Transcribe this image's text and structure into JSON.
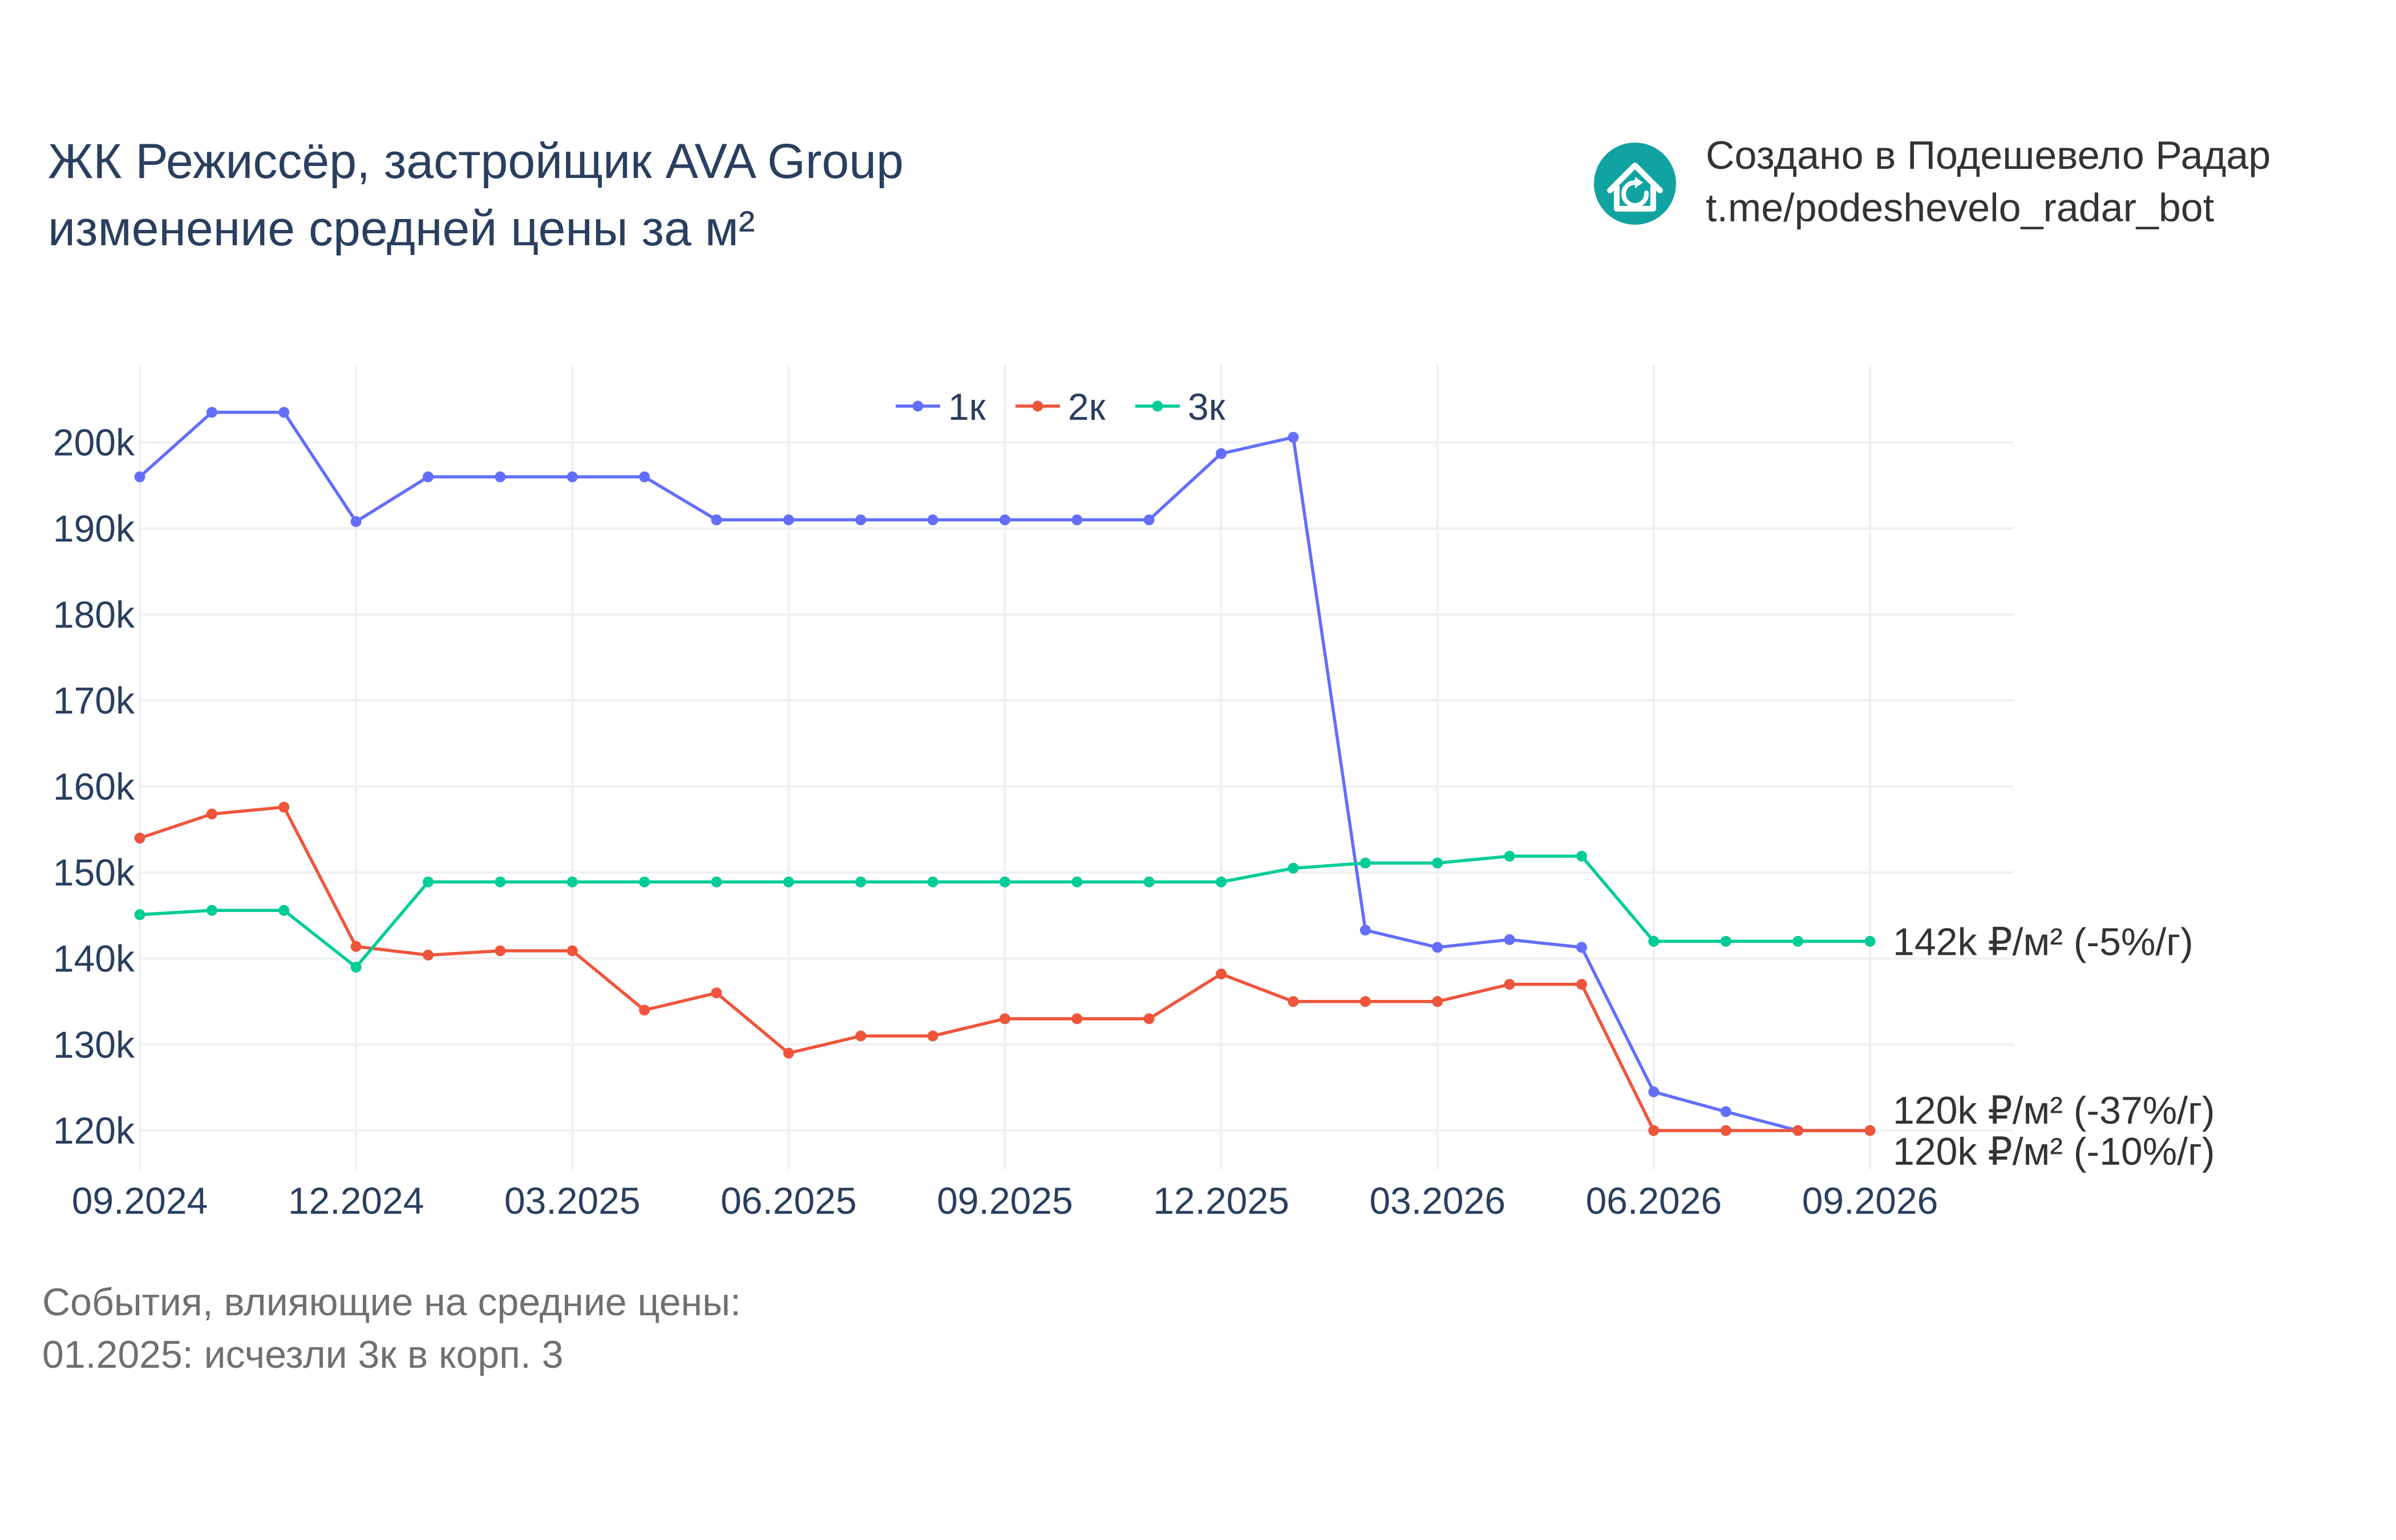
{
  "header": {
    "title_line1": "ЖК Режиссёр, застройщик AVA Group",
    "title_line2": "изменение средней цены за м²"
  },
  "credit": {
    "line1": "Создано в Подешевело Радар",
    "line2": "t.me/podeshevelo_radar_bot",
    "icon": "house-logo-icon",
    "icon_color": "#11a3a1"
  },
  "notes": {
    "line1": "События, влияющие на средние цены:",
    "line2": "01.2025: исчезли 3к в корп. 3"
  },
  "chart_data": {
    "type": "line",
    "x": [
      "09.2024",
      "10.2024",
      "11.2024",
      "12.2024",
      "01.2025",
      "02.2025",
      "03.2025",
      "04.2025",
      "05.2025",
      "06.2025",
      "07.2025",
      "08.2025",
      "09.2025",
      "10.2025",
      "11.2025",
      "12.2025",
      "01.2026",
      "02.2026",
      "03.2026",
      "04.2026",
      "05.2026",
      "06.2026",
      "07.2026",
      "08.2026",
      "09.2026"
    ],
    "x_tick_labels": [
      "09.2024",
      "12.2024",
      "03.2025",
      "06.2025",
      "09.2025",
      "12.2025",
      "03.2026",
      "06.2026",
      "09.2026"
    ],
    "y_tick_labels": [
      "120k",
      "130k",
      "140k",
      "150k",
      "160k",
      "170k",
      "180k",
      "190k",
      "200k"
    ],
    "y_ticks": [
      120000,
      130000,
      140000,
      150000,
      160000,
      170000,
      180000,
      190000,
      200000
    ],
    "ylim": [
      115500,
      209000
    ],
    "grid": true,
    "legend_position": "top-center",
    "series": [
      {
        "name": "1к",
        "color": "#636efa",
        "values": [
          196000,
          203500,
          203500,
          190800,
          196000,
          196000,
          196000,
          196000,
          191000,
          191000,
          191000,
          191000,
          191000,
          191000,
          191000,
          198700,
          200600,
          143300,
          141300,
          142200,
          141300,
          124500,
          122200,
          120000,
          120000
        ],
        "end_label": "120k ₽/м² (-37%/г)"
      },
      {
        "name": "2к",
        "color": "#ef553b",
        "values": [
          154000,
          156800,
          157600,
          141400,
          140400,
          140900,
          140900,
          134000,
          136000,
          129000,
          131000,
          131000,
          133000,
          133000,
          133000,
          138200,
          135000,
          135000,
          135000,
          137000,
          137000,
          120000,
          120000,
          120000,
          120000
        ],
        "end_label": "120k ₽/м² (-10%/г)"
      },
      {
        "name": "3к",
        "color": "#00cc96",
        "values": [
          145100,
          145600,
          145600,
          139000,
          148900,
          148900,
          148900,
          148900,
          148900,
          148900,
          148900,
          148900,
          148900,
          148900,
          148900,
          148900,
          150500,
          151100,
          151100,
          151900,
          151900,
          142000,
          142000,
          142000,
          142000
        ],
        "end_label": "142k ₽/м² (-5%/г)"
      }
    ]
  }
}
